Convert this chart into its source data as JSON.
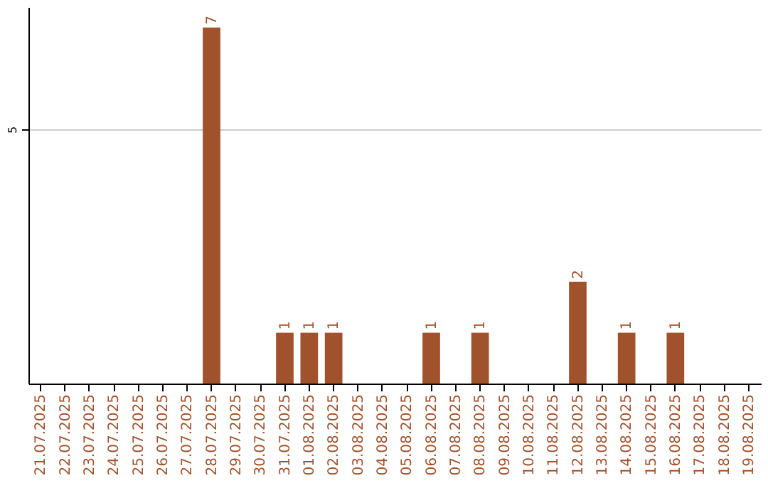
{
  "chart_data": {
    "type": "bar",
    "categories": [
      "21.07.2025",
      "22.07.2025",
      "23.07.2025",
      "24.07.2025",
      "25.07.2025",
      "26.07.2025",
      "27.07.2025",
      "28.07.2025",
      "29.07.2025",
      "30.07.2025",
      "31.07.2025",
      "01.08.2025",
      "02.08.2025",
      "03.08.2025",
      "04.08.2025",
      "05.08.2025",
      "06.08.2025",
      "07.08.2025",
      "08.08.2025",
      "09.08.2025",
      "10.08.2025",
      "11.08.2025",
      "12.08.2025",
      "13.08.2025",
      "14.08.2025",
      "15.08.2025",
      "16.08.2025",
      "17.08.2025",
      "18.08.2025",
      "19.08.2025"
    ],
    "values": [
      0,
      0,
      0,
      0,
      0,
      0,
      0,
      7,
      0,
      0,
      1,
      1,
      1,
      0,
      0,
      0,
      1,
      0,
      1,
      0,
      0,
      0,
      2,
      0,
      1,
      0,
      1,
      0,
      0,
      0
    ],
    "color": "#a0522d",
    "value_labels": [
      null,
      null,
      null,
      null,
      null,
      null,
      null,
      "7",
      null,
      null,
      "1",
      "1",
      "1",
      null,
      null,
      null,
      "1",
      null,
      "1",
      null,
      null,
      null,
      "2",
      null,
      "1",
      null,
      "1",
      null,
      null,
      null
    ],
    "ylim": [
      0,
      7.4
    ],
    "yticks": [
      5
    ],
    "grid": "y"
  }
}
